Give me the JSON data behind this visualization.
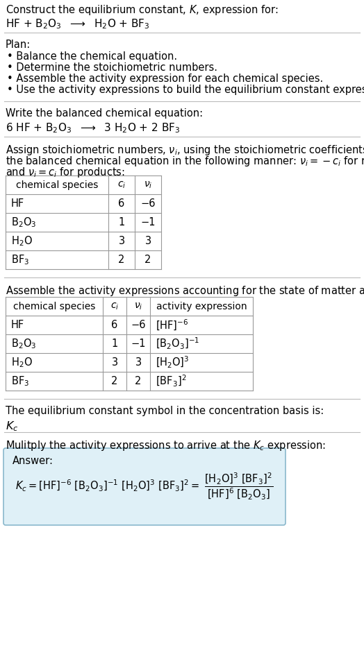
{
  "bg_color": "#ffffff",
  "section1_title": "Construct the equilibrium constant, $K$, expression for:",
  "section1_equation": "HF + B$_2$O$_3$  $\\longrightarrow$  H$_2$O + BF$_3$",
  "plan_title": "Plan:",
  "plan_items": [
    "• Balance the chemical equation.",
    "• Determine the stoichiometric numbers.",
    "• Assemble the activity expression for each chemical species.",
    "• Use the activity expressions to build the equilibrium constant expression."
  ],
  "balanced_title": "Write the balanced chemical equation:",
  "balanced_eq": "6 HF + B$_2$O$_3$  $\\longrightarrow$  3 H$_2$O + 2 BF$_3$",
  "stoich_line1": "Assign stoichiometric numbers, $\\nu_i$, using the stoichiometric coefficients, $c_i$, from",
  "stoich_line2": "the balanced chemical equation in the following manner: $\\nu_i = -c_i$ for reactants",
  "stoich_line3": "and $\\nu_i = c_i$ for products:",
  "table1_headers": [
    "chemical species",
    "$c_i$",
    "$\\nu_i$"
  ],
  "table1_rows": [
    [
      "HF",
      "6",
      "−6"
    ],
    [
      "B$_2$O$_3$",
      "1",
      "−1"
    ],
    [
      "H$_2$O",
      "3",
      "3"
    ],
    [
      "BF$_3$",
      "2",
      "2"
    ]
  ],
  "activity_intro": "Assemble the activity expressions accounting for the state of matter and $\\nu_i$:",
  "table2_headers": [
    "chemical species",
    "$c_i$",
    "$\\nu_i$",
    "activity expression"
  ],
  "table2_rows": [
    [
      "HF",
      "6",
      "−6",
      "[HF]$^{-6}$"
    ],
    [
      "B$_2$O$_3$",
      "1",
      "−1",
      "[B$_2$O$_3$]$^{-1}$"
    ],
    [
      "H$_2$O",
      "3",
      "3",
      "[H$_2$O]$^{3}$"
    ],
    [
      "BF$_3$",
      "2",
      "2",
      "[BF$_3$]$^{2}$"
    ]
  ],
  "kc_title": "The equilibrium constant symbol in the concentration basis is:",
  "kc_symbol": "$K_c$",
  "multiply_title": "Mulitply the activity expressions to arrive at the $K_c$ expression:",
  "answer_label": "Answer:",
  "answer_box_color": "#dff0f7",
  "answer_box_border": "#8ab8cc"
}
